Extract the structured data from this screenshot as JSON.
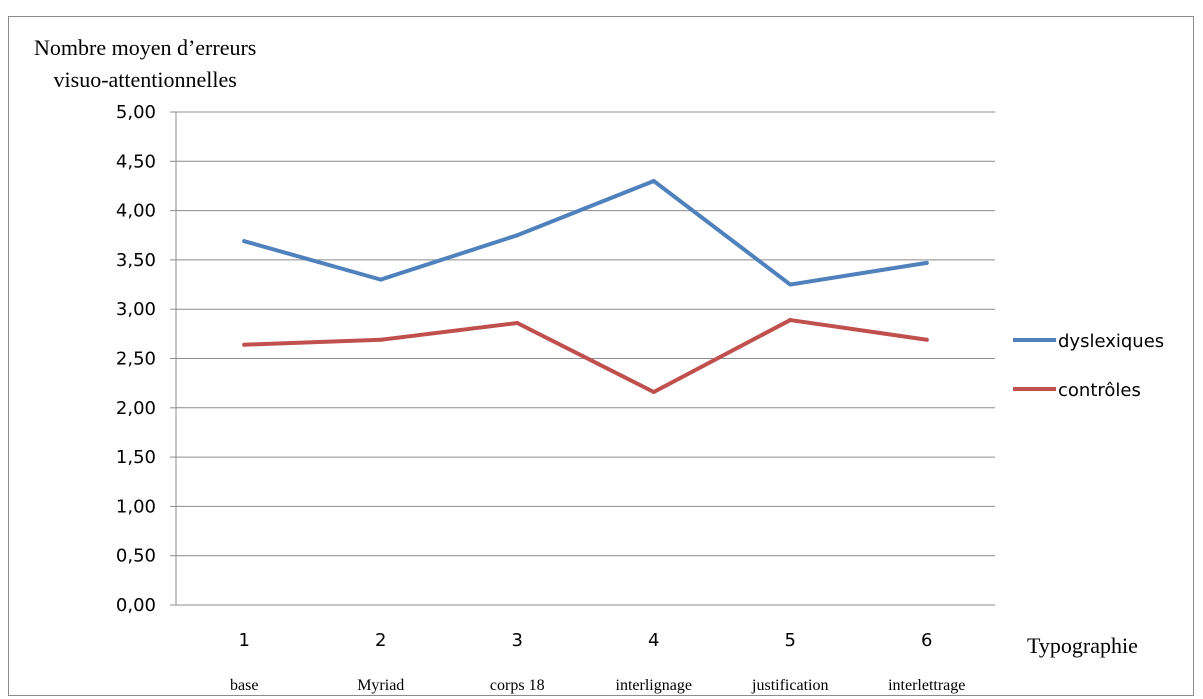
{
  "chart_data": {
    "type": "line",
    "ylabel_line1": "Nombre moyen d’erreurs",
    "ylabel_line2": "visuo-attentionnelles",
    "xlabel": "Typographie",
    "x": [
      "1",
      "2",
      "3",
      "4",
      "5",
      "6"
    ],
    "category_names": [
      "base",
      "Myriad",
      "corps 18",
      "interlignage",
      "justification",
      "interlettrage"
    ],
    "ylim": [
      0,
      5
    ],
    "yticks": [
      "0,00",
      "0,50",
      "1,00",
      "1,50",
      "2,00",
      "2,50",
      "3,00",
      "3,50",
      "4,00",
      "4,50",
      "5,00"
    ],
    "grid": true,
    "legend_position": "right",
    "series": [
      {
        "name": "dyslexiques",
        "color": "#4f81bd",
        "values": [
          3.69,
          3.3,
          3.75,
          4.3,
          3.25,
          3.47
        ]
      },
      {
        "name": "contrôles",
        "color": "#c0504d",
        "values": [
          2.64,
          2.69,
          2.86,
          2.16,
          2.89,
          2.69
        ]
      }
    ]
  }
}
